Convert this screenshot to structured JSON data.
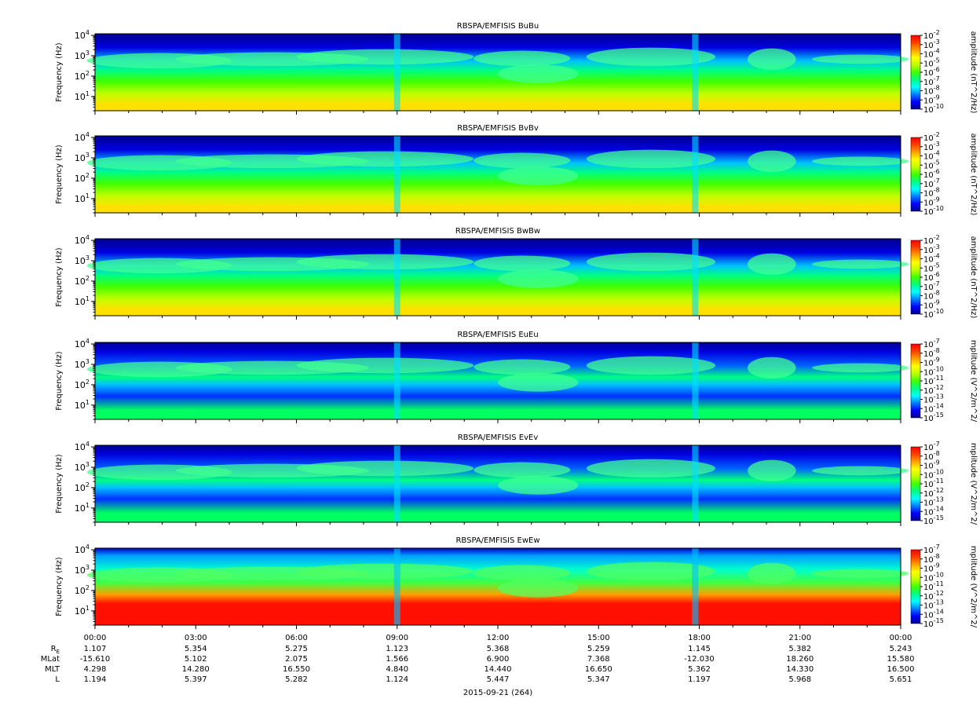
{
  "chart_data": {
    "type": "heatmap",
    "panels": [
      {
        "title": "RBSPA/EMFISIS  BuBu",
        "ylabel": "Frequency (Hz)",
        "yscale": "log",
        "ylim_hz": [
          2,
          12000
        ],
        "colorbar": {
          "label": "amplitude (nT^2/Hz)",
          "scale": "log",
          "exponents": [
            -2,
            -3,
            -4,
            -5,
            -6,
            -7,
            -8,
            -9,
            -10
          ]
        }
      },
      {
        "title": "RBSPA/EMFISIS  BvBv",
        "ylabel": "Frequency (Hz)",
        "yscale": "log",
        "ylim_hz": [
          2,
          12000
        ],
        "colorbar": {
          "label": "amplitude (nT^2/Hz)",
          "scale": "log",
          "exponents": [
            -2,
            -3,
            -4,
            -5,
            -6,
            -7,
            -8,
            -9,
            -10
          ]
        }
      },
      {
        "title": "RBSPA/EMFISIS  BwBw",
        "ylabel": "Frequency (Hz)",
        "yscale": "log",
        "ylim_hz": [
          2,
          12000
        ],
        "colorbar": {
          "label": "amplitude (nT^2/Hz)",
          "scale": "log",
          "exponents": [
            -2,
            -3,
            -4,
            -5,
            -6,
            -7,
            -8,
            -9,
            -10
          ]
        }
      },
      {
        "title": "RBSPA/EMFISIS  EuEu",
        "ylabel": "Frequency (Hz)",
        "yscale": "log",
        "ylim_hz": [
          2,
          12000
        ],
        "colorbar": {
          "label": "mplitude (V^2/m^2/",
          "scale": "log",
          "exponents": [
            -7,
            -8,
            -9,
            -10,
            -11,
            -12,
            -13,
            -14,
            -15
          ]
        }
      },
      {
        "title": "RBSPA/EMFISIS  EvEv",
        "ylabel": "Frequency (Hz)",
        "yscale": "log",
        "ylim_hz": [
          2,
          12000
        ],
        "colorbar": {
          "label": "mplitude (V^2/m^2/",
          "scale": "log",
          "exponents": [
            -7,
            -8,
            -9,
            -10,
            -11,
            -12,
            -13,
            -14,
            -15
          ]
        }
      },
      {
        "title": "RBSPA/EMFISIS  EwEw",
        "ylabel": "Frequency (Hz)",
        "yscale": "log",
        "ylim_hz": [
          2,
          12000
        ],
        "colorbar": {
          "label": "mplitude (V^2/m^2/",
          "scale": "log",
          "exponents": [
            -7,
            -8,
            -9,
            -10,
            -11,
            -12,
            -13,
            -14,
            -15
          ]
        }
      }
    ],
    "y_ticks": [
      {
        "base": "10",
        "exp": "1",
        "value_hz": 10
      },
      {
        "base": "10",
        "exp": "2",
        "value_hz": 100
      },
      {
        "base": "10",
        "exp": "3",
        "value_hz": 1000
      },
      {
        "base": "10",
        "exp": "4",
        "value_hz": 10000
      }
    ],
    "x_time_ticks": [
      "00:00",
      "03:00",
      "06:00",
      "09:00",
      "12:00",
      "15:00",
      "18:00",
      "21:00",
      "00:00"
    ],
    "x_range_hours": [
      0,
      24
    ],
    "ephemeris": [
      {
        "label": "R",
        "sub": "E",
        "values": [
          "1.107",
          "5.354",
          "5.275",
          "1.123",
          "5.368",
          "5.259",
          "1.145",
          "5.382",
          "5.243"
        ]
      },
      {
        "label": "MLat",
        "sub": "",
        "values": [
          "-15.610",
          "5.102",
          "2.075",
          "1.566",
          "6.900",
          "7.368",
          "-12.030",
          "18.260",
          "15.580"
        ]
      },
      {
        "label": "MLT",
        "sub": "",
        "values": [
          "4.298",
          "14.280",
          "16.550",
          "4.840",
          "14.440",
          "16.650",
          "5.362",
          "14.330",
          "16.500"
        ]
      },
      {
        "label": "L",
        "sub": "",
        "values": [
          "1.194",
          "5.397",
          "5.282",
          "1.124",
          "5.447",
          "5.347",
          "1.197",
          "5.968",
          "5.651"
        ]
      }
    ],
    "date_label": "2015-09-21 (264)",
    "colormap": [
      "#00008f",
      "#0000ff",
      "#0080ff",
      "#00ffff",
      "#00ff80",
      "#40ff00",
      "#c0ff00",
      "#ffff00",
      "#ffa000",
      "#ff4000",
      "#ff0000"
    ]
  }
}
